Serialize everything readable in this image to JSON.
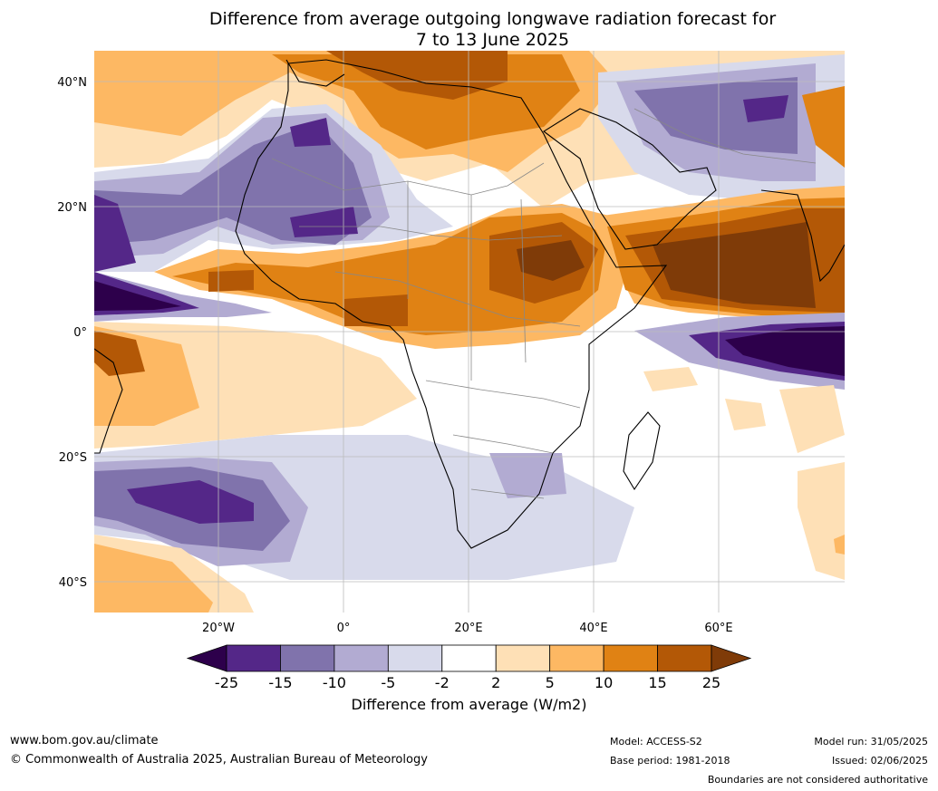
{
  "title_line1": "Difference from average outgoing longwave radiation forecast for",
  "title_line2": "7 to 13 June 2025",
  "lat_ticks": [
    {
      "label": "40°N",
      "lat": 40
    },
    {
      "label": "20°N",
      "lat": 20
    },
    {
      "label": "0°",
      "lat": 0
    },
    {
      "label": "20°S",
      "lat": -20
    },
    {
      "label": "40°S",
      "lat": -40
    }
  ],
  "lon_ticks": [
    {
      "label": "20°W",
      "lon": -20
    },
    {
      "label": "0°",
      "lon": 0
    },
    {
      "label": "20°E",
      "lon": 20
    },
    {
      "label": "40°E",
      "lon": 40
    },
    {
      "label": "60°E",
      "lon": 60
    }
  ],
  "colorbar": {
    "title": "Difference from average (W/m2)",
    "levels": [
      "-25",
      "-15",
      "-10",
      "-5",
      "-2",
      "2",
      "5",
      "10",
      "15",
      "25"
    ],
    "colors": [
      "#2d004b",
      "#542788",
      "#8073ac",
      "#b2abd2",
      "#d8daeb",
      "#ffffff",
      "#fee0b6",
      "#fdb863",
      "#e08214",
      "#b35806",
      "#7f3b08"
    ]
  },
  "footer": {
    "url": "www.bom.gov.au/climate",
    "copyright": "© Commonwealth of Australia 2025, Australian Bureau of Meteorology",
    "model": "Model: ACCESS-S2",
    "base_period": "Base period: 1981-2018",
    "model_run": "Model run: 31/05/2025",
    "issued": "Issued: 02/06/2025",
    "disclaimer": "Boundaries are not considered authoritative"
  }
}
